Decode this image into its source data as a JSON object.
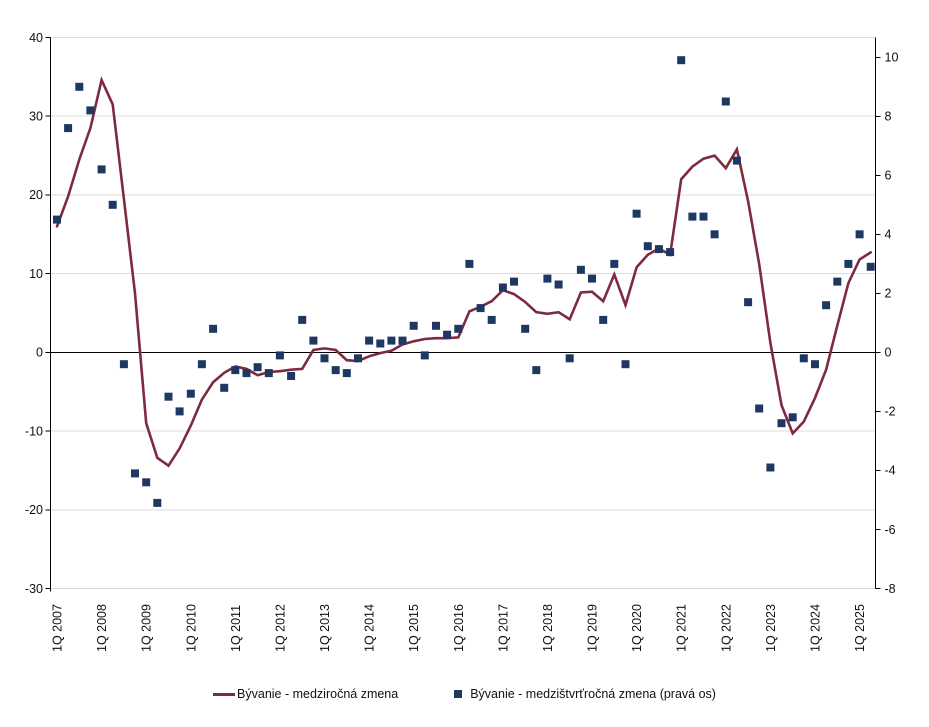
{
  "chart_data": {
    "type": "line+scatter",
    "title": "",
    "x_tick_labels": [
      "1Q 2007",
      "1Q 2008",
      "1Q 2009",
      "1Q 2010",
      "1Q 2011",
      "1Q 2012",
      "1Q 2013",
      "1Q 2014",
      "1Q 2015",
      "1Q 2016",
      "1Q 2017",
      "1Q 2018",
      "1Q 2019",
      "1Q 2020",
      "1Q 2021",
      "1Q 2022",
      "1Q 2023",
      "1Q 2024",
      "1Q 2025"
    ],
    "x_points_per_tick": 4,
    "n_points": 74,
    "series": [
      {
        "name": "Bývanie - medziročná zmena",
        "type": "line",
        "axis": "left",
        "color": "#7e2a40",
        "values": [
          16.0,
          19.8,
          24.5,
          28.5,
          34.6,
          31.5,
          19.5,
          7.5,
          -9.0,
          -13.4,
          -14.4,
          -12.2,
          -9.3,
          -6.0,
          -3.8,
          -2.6,
          -1.8,
          -2.1,
          -2.9,
          -2.5,
          -2.4,
          -2.2,
          -2.1,
          0.3,
          0.5,
          0.3,
          -1.0,
          -1.1,
          -0.5,
          -0.1,
          0.2,
          1.0,
          1.4,
          1.7,
          1.8,
          1.8,
          1.9,
          5.2,
          5.8,
          6.5,
          7.9,
          7.4,
          6.4,
          5.1,
          4.9,
          5.1,
          4.2,
          7.6,
          7.7,
          6.5,
          9.9,
          6.0,
          10.8,
          12.4,
          13.2,
          12.4,
          22.0,
          23.6,
          24.6,
          25.0,
          23.4,
          25.8,
          19.2,
          11.2,
          1.2,
          -6.7,
          -10.3,
          -8.8,
          -5.8,
          -2.2,
          3.4,
          8.8,
          11.8,
          12.7
        ]
      },
      {
        "name": "Bývanie - medzištvrťročná zmena (pravá os)",
        "type": "scatter",
        "axis": "right",
        "color": "#1f3863",
        "marker_size": 8,
        "values": [
          4.5,
          7.6,
          9.0,
          8.2,
          6.2,
          5.0,
          -0.4,
          -4.1,
          -4.4,
          -5.1,
          -1.5,
          -2.0,
          -1.4,
          -0.4,
          0.8,
          -1.2,
          -0.6,
          -0.7,
          -0.5,
          -0.7,
          -0.1,
          -0.8,
          1.1,
          0.4,
          -0.2,
          -0.6,
          -0.7,
          -0.2,
          0.4,
          0.3,
          0.4,
          0.4,
          0.9,
          -0.1,
          0.9,
          0.6,
          0.8,
          3.0,
          1.5,
          1.1,
          2.2,
          2.4,
          0.8,
          -0.6,
          2.5,
          2.3,
          -0.2,
          2.8,
          2.5,
          1.1,
          3.0,
          -0.4,
          4.7,
          3.6,
          3.5,
          3.4,
          9.9,
          4.6,
          4.6,
          4.0,
          8.5,
          6.5,
          1.7,
          -1.9,
          -3.9,
          -2.4,
          -2.2,
          -0.2,
          -0.4,
          1.6,
          2.4,
          3.0,
          4.0,
          2.9
        ]
      }
    ],
    "left_axis": {
      "ylim": [
        -30,
        40
      ],
      "ticks": [
        40,
        30,
        20,
        10,
        0,
        -10,
        -20,
        -30
      ]
    },
    "right_axis": {
      "ylim": [
        -8,
        10.67
      ],
      "ticks": [
        10,
        8,
        6,
        4,
        2,
        0,
        -2,
        -4,
        -6,
        -8
      ]
    },
    "grid": {
      "on": true,
      "color": "#dcdcdc",
      "zero_line_color": "#000000",
      "axis_color": "#000000",
      "bottom_line_color": "#d9d9d9"
    },
    "legend_position": "bottom"
  }
}
